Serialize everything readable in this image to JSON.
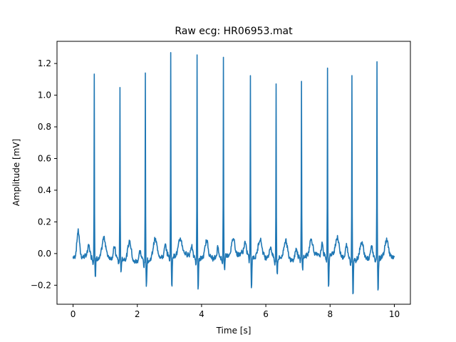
{
  "chart_data": {
    "type": "line",
    "title": "Raw ecg: HR06953.mat",
    "xlabel": "Time [s]",
    "ylabel": "Amplitude [mV]",
    "xlim": [
      -0.5,
      10.5
    ],
    "ylim": [
      -0.32,
      1.34
    ],
    "x_ticks": [
      0,
      2,
      4,
      6,
      8,
      10
    ],
    "y_ticks": [
      -0.2,
      0.0,
      0.2,
      0.4,
      0.6,
      0.8,
      1.0,
      1.2
    ],
    "x_tick_labels": [
      "0",
      "2",
      "4",
      "6",
      "8",
      "10"
    ],
    "y_tick_labels": [
      "−0.2",
      "0.0",
      "0.2",
      "0.4",
      "0.6",
      "0.8",
      "1.0",
      "1.2"
    ],
    "grid": false,
    "series": [
      {
        "color": "#1f77b4",
        "sample_rate_hz": 100,
        "beats": [
          {
            "t": 0.66,
            "r": 1.17,
            "s": -0.14
          },
          {
            "t": 1.46,
            "r": 1.07,
            "s": -0.08
          },
          {
            "t": 2.25,
            "r": 1.18,
            "s": -0.17
          },
          {
            "t": 3.04,
            "r": 1.29,
            "s": -0.22
          },
          {
            "t": 3.86,
            "r": 1.28,
            "s": -0.21
          },
          {
            "t": 4.68,
            "r": 1.27,
            "s": -0.09
          },
          {
            "t": 5.52,
            "r": 1.13,
            "s": -0.2
          },
          {
            "t": 6.32,
            "r": 1.1,
            "s": -0.1
          },
          {
            "t": 7.11,
            "r": 1.12,
            "s": -0.09
          },
          {
            "t": 7.92,
            "r": 1.2,
            "s": -0.22
          },
          {
            "t": 8.68,
            "r": 1.17,
            "s": -0.24
          },
          {
            "t": 9.46,
            "r": 1.22,
            "s": -0.22
          }
        ]
      }
    ]
  }
}
